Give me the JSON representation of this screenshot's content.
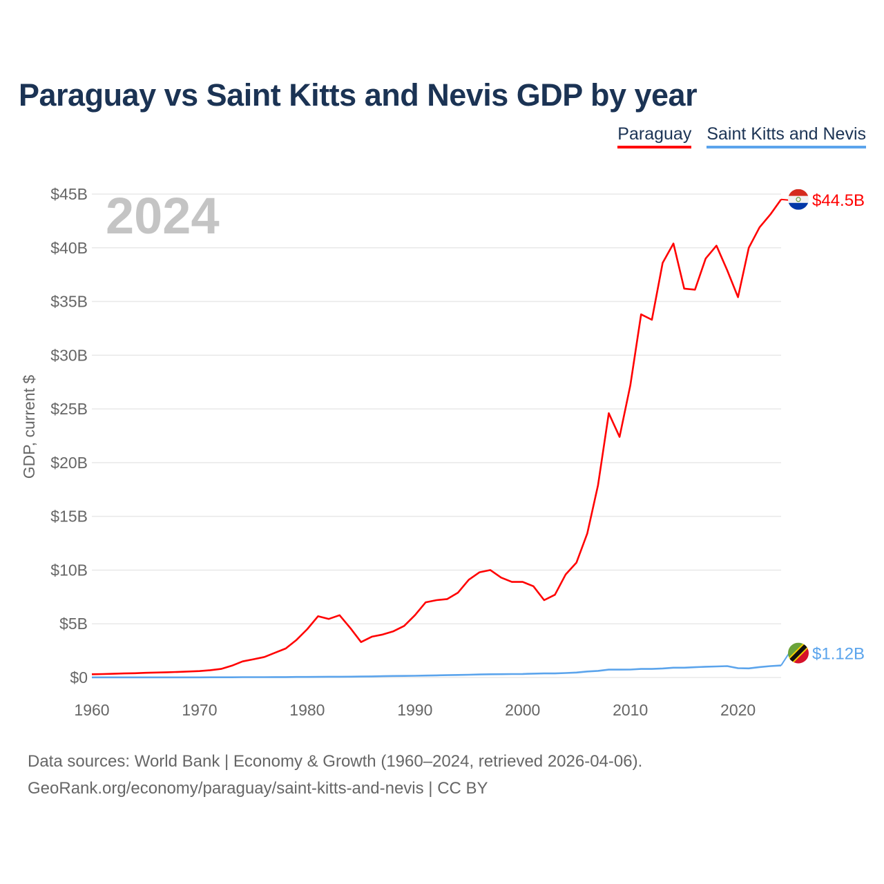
{
  "chart_data": {
    "type": "line",
    "title": "Paraguay vs Saint Kitts and Nevis GDP by year",
    "ylabel": "GDP, current $",
    "xlabel": "",
    "year_label": "2024",
    "ylim": [
      0,
      45
    ],
    "xlim": [
      1960,
      2024
    ],
    "grid": true,
    "legend_position": "top-right",
    "y_ticks": [
      "$0",
      "$5B",
      "$10B",
      "$15B",
      "$20B",
      "$25B",
      "$30B",
      "$35B",
      "$40B",
      "$45B"
    ],
    "y_tick_values": [
      0,
      5,
      10,
      15,
      20,
      25,
      30,
      35,
      40,
      45
    ],
    "x_ticks": [
      "1960",
      "1970",
      "1980",
      "1990",
      "2000",
      "2010",
      "2020"
    ],
    "x_tick_values": [
      1960,
      1970,
      1980,
      1990,
      2000,
      2010,
      2020
    ],
    "x_start": 1960,
    "series": [
      {
        "name": "Paraguay",
        "color": "#ff0000",
        "end_label": "$44.5B",
        "values": [
          0.3,
          0.32,
          0.35,
          0.38,
          0.4,
          0.44,
          0.46,
          0.49,
          0.52,
          0.56,
          0.6,
          0.68,
          0.8,
          1.1,
          1.5,
          1.7,
          1.9,
          2.3,
          2.7,
          3.5,
          4.5,
          5.7,
          5.45,
          5.8,
          4.6,
          3.3,
          3.8,
          4.0,
          4.3,
          4.8,
          5.8,
          7.0,
          7.2,
          7.3,
          7.9,
          9.1,
          9.8,
          10.0,
          9.3,
          8.9,
          8.9,
          8.5,
          7.2,
          7.7,
          9.6,
          10.7,
          13.4,
          17.9,
          24.6,
          22.4,
          27.2,
          33.8,
          33.3,
          38.6,
          40.4,
          36.2,
          36.1,
          39.0,
          40.2,
          37.9,
          35.4,
          40.0,
          41.9,
          43.1,
          44.5
        ]
      },
      {
        "name": "Saint Kitts and Nevis",
        "color": "#5ba4ec",
        "end_label": "$1.12B",
        "values": [
          0.01,
          0.01,
          0.01,
          0.01,
          0.01,
          0.01,
          0.01,
          0.01,
          0.01,
          0.01,
          0.01,
          0.02,
          0.02,
          0.02,
          0.03,
          0.03,
          0.03,
          0.04,
          0.04,
          0.05,
          0.05,
          0.06,
          0.07,
          0.07,
          0.08,
          0.09,
          0.1,
          0.12,
          0.14,
          0.15,
          0.16,
          0.18,
          0.2,
          0.22,
          0.24,
          0.26,
          0.28,
          0.3,
          0.31,
          0.32,
          0.33,
          0.36,
          0.38,
          0.38,
          0.42,
          0.46,
          0.56,
          0.62,
          0.73,
          0.73,
          0.74,
          0.8,
          0.8,
          0.84,
          0.91,
          0.91,
          0.96,
          1.0,
          1.03,
          1.06,
          0.87,
          0.85,
          0.97,
          1.06,
          1.12
        ]
      }
    ]
  },
  "legend": [
    "Paraguay",
    "Saint Kitts and Nevis"
  ],
  "source": {
    "line1": "Data sources: World Bank | Economy & Growth (1960–2024, retrieved 2026-04-06).",
    "line2": "GeoRank.org/economy/paraguay/saint-kitts-and-nevis | CC BY"
  }
}
